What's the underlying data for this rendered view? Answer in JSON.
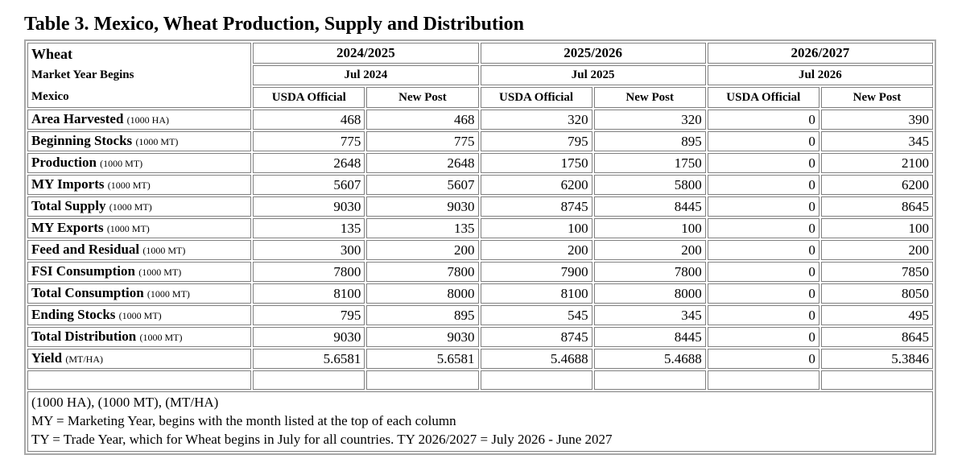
{
  "title": "Table 3. Mexico, Wheat Production, Supply and Distribution",
  "table": {
    "commodity": "Wheat",
    "market_year_begins_label": "Market Year Begins",
    "country": "Mexico",
    "year_groups": [
      {
        "year": "2024/2025",
        "begins": "Jul 2024"
      },
      {
        "year": "2025/2026",
        "begins": "Jul 2025"
      },
      {
        "year": "2026/2027",
        "begins": "Jul 2026"
      }
    ],
    "subcolumns": [
      "USDA Official",
      "New Post"
    ],
    "rows": [
      {
        "label": "Area Harvested",
        "unit": "(1000 HA)",
        "values": [
          "468",
          "468",
          "320",
          "320",
          "0",
          "390"
        ]
      },
      {
        "label": "Beginning Stocks",
        "unit": "(1000 MT)",
        "values": [
          "775",
          "775",
          "795",
          "895",
          "0",
          "345"
        ]
      },
      {
        "label": "Production",
        "unit": "(1000 MT)",
        "values": [
          "2648",
          "2648",
          "1750",
          "1750",
          "0",
          "2100"
        ]
      },
      {
        "label": "MY Imports",
        "unit": "(1000 MT)",
        "values": [
          "5607",
          "5607",
          "6200",
          "5800",
          "0",
          "6200"
        ]
      },
      {
        "label": "Total Supply",
        "unit": "(1000 MT)",
        "values": [
          "9030",
          "9030",
          "8745",
          "8445",
          "0",
          "8645"
        ]
      },
      {
        "label": "MY Exports",
        "unit": "(1000 MT)",
        "values": [
          "135",
          "135",
          "100",
          "100",
          "0",
          "100"
        ]
      },
      {
        "label": "Feed and Residual",
        "unit": "(1000 MT)",
        "values": [
          "300",
          "200",
          "200",
          "200",
          "0",
          "200"
        ]
      },
      {
        "label": "FSI Consumption",
        "unit": "(1000 MT)",
        "values": [
          "7800",
          "7800",
          "7900",
          "7800",
          "0",
          "7850"
        ]
      },
      {
        "label": "Total Consumption",
        "unit": "(1000 MT)",
        "values": [
          "8100",
          "8000",
          "8100",
          "8000",
          "0",
          "8050"
        ]
      },
      {
        "label": "Ending Stocks",
        "unit": "(1000 MT)",
        "values": [
          "795",
          "895",
          "545",
          "345",
          "0",
          "495"
        ]
      },
      {
        "label": "Total Distribution",
        "unit": "(1000 MT)",
        "values": [
          "9030",
          "9030",
          "8745",
          "8445",
          "0",
          "8645"
        ]
      },
      {
        "label": "Yield",
        "unit": "(MT/HA)",
        "values": [
          "5.6581",
          "5.6581",
          "5.4688",
          "5.4688",
          "0",
          "5.3846"
        ]
      }
    ]
  },
  "footnotes": [
    "(1000 HA), (1000 MT), (MT/HA)",
    "MY = Marketing Year, begins with the month listed at the top of each column",
    "TY = Trade Year, which for Wheat begins in July for all countries. TY 2026/2027 = July 2026 - June 2027"
  ]
}
